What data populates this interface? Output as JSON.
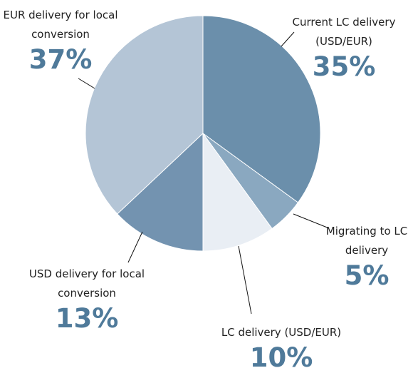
{
  "chart_data": {
    "type": "pie",
    "categories": [
      "Current LC delivery (USD/EUR)",
      "Migrating to LC delivery",
      "LC delivery (USD/EUR)",
      "USD delivery for local conversion",
      "EUR delivery for local conversion"
    ],
    "values": [
      35,
      5,
      10,
      13,
      37
    ],
    "value_labels": [
      "35%",
      "5%",
      "10%",
      "13%",
      "37%"
    ],
    "colors": [
      "#6b8fab",
      "#8aa8c0",
      "#e9eef4",
      "#7393b0",
      "#b4c5d6"
    ]
  }
}
